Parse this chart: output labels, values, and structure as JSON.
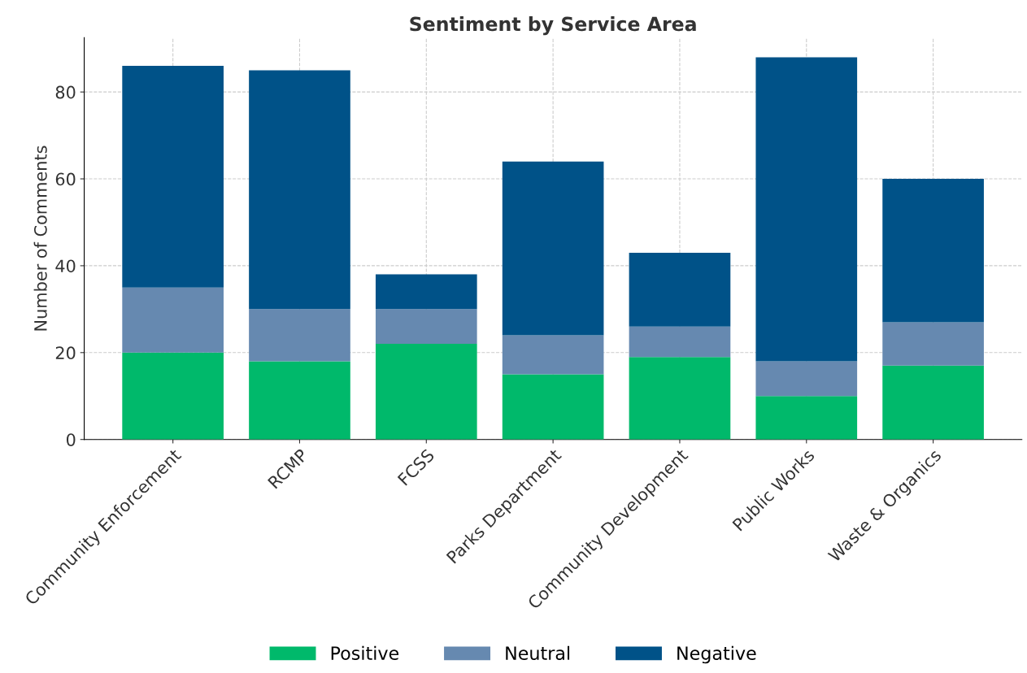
{
  "chart_data": {
    "type": "bar",
    "title": "Sentiment by Service Area",
    "ylabel": "Number of Comments",
    "categories": [
      "Community Enforcement",
      "RCMP",
      "FCSS",
      "Parks Department",
      "Community Development",
      "Public Works",
      "Waste & Organics"
    ],
    "stacked": true,
    "series": [
      {
        "name": "Positive",
        "color": "#00b96b",
        "values": [
          20,
          18,
          22,
          15,
          19,
          10,
          17
        ]
      },
      {
        "name": "Neutral",
        "color": "#6689b0",
        "values": [
          15,
          12,
          8,
          9,
          7,
          8,
          10
        ]
      },
      {
        "name": "Negative",
        "color": "#005288",
        "values": [
          51,
          55,
          8,
          40,
          17,
          70,
          33
        ]
      }
    ],
    "ylim": [
      0,
      92.5
    ],
    "yticks": [
      0,
      20,
      40,
      60,
      80
    ],
    "grid": true,
    "legend": "bottom"
  }
}
